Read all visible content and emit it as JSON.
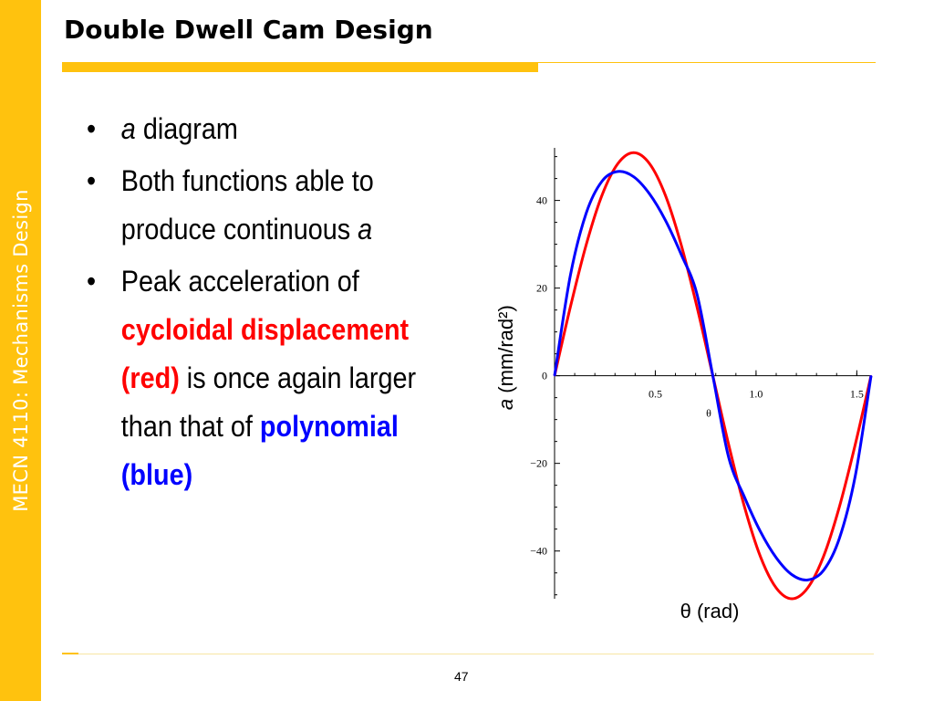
{
  "sidebar": {
    "text": "MECN 4110: Mechanisms Design"
  },
  "slide": {
    "title": "Double Dwell Cam Design",
    "page_number": "47"
  },
  "bullets": {
    "b1_var": "a",
    "b1_text": " diagram",
    "b2_text": "Both functions able to produce continuous ",
    "b2_var": "a",
    "b3_pre": "Peak acceleration of ",
    "b3_red": "cycloidal displacement (red)",
    "b3_mid": " is once again larger than that of ",
    "b3_blue": "polynomial (blue)"
  },
  "colors": {
    "accent": "#FFC20E",
    "red_series": "#FF0000",
    "blue_series": "#0000FF"
  },
  "chart_data": {
    "type": "line",
    "xlabel": "θ (rad)",
    "xlabel_inline": "θ",
    "ylabel_var": "a",
    "ylabel_unit": "(mm/rad²)",
    "xlim": [
      0,
      1.5708
    ],
    "ylim": [
      -50.9,
      52
    ],
    "x_ticks": [
      {
        "value": 0.5,
        "label": "0.5"
      },
      {
        "value": 1.0,
        "label": "1.0"
      },
      {
        "value": 1.5,
        "label": "1.5"
      }
    ],
    "y_ticks": [
      {
        "value": 40,
        "label": "40"
      },
      {
        "value": 20,
        "label": "20"
      },
      {
        "value": 0,
        "label": "0"
      },
      {
        "value": -20,
        "label": "−20"
      },
      {
        "value": -40,
        "label": "−40"
      }
    ],
    "series": [
      {
        "color": "#FF0000",
        "x": [
          0,
          0.0785,
          0.1571,
          0.2356,
          0.3142,
          0.3927,
          0.4712,
          0.5498,
          0.6283,
          0.7069,
          0.7854,
          0.8639,
          0.9425,
          1.021,
          1.0996,
          1.1781,
          1.2566,
          1.3352,
          1.4137,
          1.4923,
          1.5708
        ],
        "y": [
          0,
          15.7,
          29.9,
          41.2,
          48.4,
          50.9,
          48.4,
          41.2,
          29.9,
          15.7,
          0,
          -15.7,
          -29.9,
          -41.2,
          -48.4,
          -50.9,
          -48.4,
          -41.2,
          -29.9,
          -15.7,
          0
        ]
      },
      {
        "color": "#0000FF",
        "x": [
          0,
          0.0785,
          0.1571,
          0.2356,
          0.3142,
          0.3927,
          0.4712,
          0.5498,
          0.6283,
          0.7069,
          0.7854,
          0.8639,
          0.9425,
          1.021,
          1.0996,
          1.1781,
          1.2566,
          1.3352,
          1.4137,
          1.4923,
          1.5708
        ],
        "y": [
          0,
          22.9,
          37.1,
          44.4,
          46.6,
          45.4,
          41.5,
          35.5,
          27.7,
          18.6,
          0,
          -18.6,
          -27.7,
          -35.5,
          -41.5,
          -45.4,
          -46.6,
          -44.4,
          -37.1,
          -22.9,
          0
        ]
      }
    ]
  }
}
